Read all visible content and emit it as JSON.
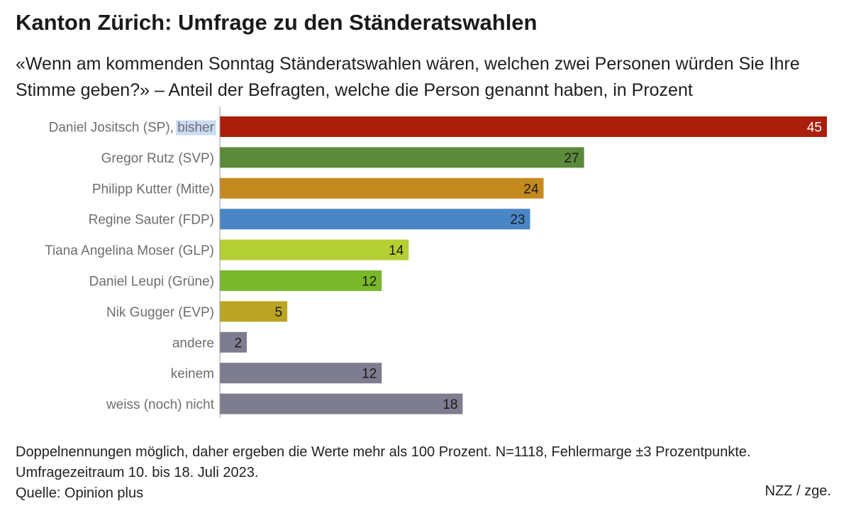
{
  "header": {
    "title": "Kanton Zürich: Umfrage zu den Ständeratswahlen",
    "subtitle": "«Wenn am kommenden Sonntag Ständeratswahlen wären, welchen zwei Personen würden Sie Ihre Stimme geben?» – Anteil der Befragten, welche die Person genannt haben, in Prozent"
  },
  "chart_data": {
    "type": "bar",
    "orientation": "horizontal",
    "categories": [
      "Daniel Jositsch (SP), bisher",
      "Gregor Rutz (SVP)",
      "Philipp Kutter (Mitte)",
      "Regine Sauter (FDP)",
      "Tiana Angelina Moser (GLP)",
      "Daniel Leupi (Grüne)",
      "Nik Gugger (EVP)",
      "andere",
      "keinem",
      "weiss (noch) nicht"
    ],
    "values": [
      45,
      27,
      24,
      23,
      14,
      12,
      5,
      2,
      12,
      18
    ],
    "colors": [
      "#a91f0c",
      "#5b8a3a",
      "#c48a1f",
      "#4a86c6",
      "#b5d033",
      "#78b82a",
      "#b9a523",
      "#7e7d8f",
      "#7e7d8f",
      "#7e7d8f"
    ],
    "value_label_colors": [
      "#ffffff",
      "#1a1a1a",
      "#1a1a1a",
      "#1a1a1a",
      "#1a1a1a",
      "#1a1a1a",
      "#1a1a1a",
      "#1a1a1a",
      "#1a1a1a",
      "#1a1a1a"
    ],
    "highlighted_text": "bisher",
    "xlim": [
      0,
      45
    ],
    "grid": false,
    "legend": "none"
  },
  "footer": {
    "note_line1": "Doppelnennungen möglich, daher ergeben die Werte mehr als 100 Prozent. N=1118, Fehlermarge ±3 Prozentpunkte.",
    "note_line2": "Umfragezeitraum 10. bis 18. Juli 2023.",
    "source": "Quelle: Opinion plus",
    "credit": "NZZ / zge."
  }
}
